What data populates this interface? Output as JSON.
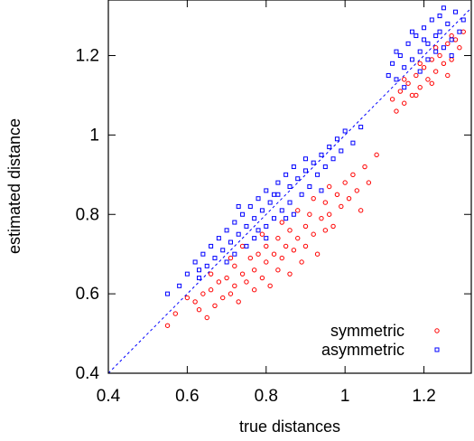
{
  "chart_data": {
    "type": "scatter",
    "title": "",
    "xlabel": "true distances",
    "ylabel": "estimated distance",
    "xlim": [
      0.4,
      1.32
    ],
    "ylim": [
      0.4,
      1.34
    ],
    "xticks": [
      0.4,
      0.6,
      0.8,
      1.0,
      1.2
    ],
    "xtick_labels": [
      "0.4",
      "0.6",
      "0.8",
      "1",
      "1.2"
    ],
    "yticks": [
      0.4,
      0.6,
      0.8,
      1.0,
      1.2
    ],
    "ytick_labels": [
      "0.4",
      "0.6",
      "0.8",
      "1",
      "1.2"
    ],
    "grid": false,
    "legend_position": "bottom-right",
    "reference_line": {
      "style": "dashed",
      "color": "#0000ff",
      "y_equals_x": true
    },
    "series": [
      {
        "name": "symmetric",
        "marker": "circle",
        "color": "#ff0000",
        "points": [
          [
            0.55,
            0.52
          ],
          [
            0.57,
            0.55
          ],
          [
            0.6,
            0.59
          ],
          [
            0.62,
            0.58
          ],
          [
            0.63,
            0.56
          ],
          [
            0.64,
            0.6
          ],
          [
            0.65,
            0.54
          ],
          [
            0.66,
            0.61
          ],
          [
            0.67,
            0.57
          ],
          [
            0.68,
            0.63
          ],
          [
            0.69,
            0.59
          ],
          [
            0.7,
            0.64
          ],
          [
            0.71,
            0.6
          ],
          [
            0.72,
            0.62
          ],
          [
            0.72,
            0.67
          ],
          [
            0.73,
            0.58
          ],
          [
            0.74,
            0.65
          ],
          [
            0.75,
            0.63
          ],
          [
            0.76,
            0.69
          ],
          [
            0.77,
            0.61
          ],
          [
            0.77,
            0.66
          ],
          [
            0.78,
            0.7
          ],
          [
            0.79,
            0.64
          ],
          [
            0.8,
            0.68
          ],
          [
            0.8,
            0.72
          ],
          [
            0.81,
            0.62
          ],
          [
            0.82,
            0.7
          ],
          [
            0.83,
            0.66
          ],
          [
            0.83,
            0.74
          ],
          [
            0.84,
            0.69
          ],
          [
            0.85,
            0.72
          ],
          [
            0.86,
            0.65
          ],
          [
            0.86,
            0.76
          ],
          [
            0.87,
            0.71
          ],
          [
            0.88,
            0.74
          ],
          [
            0.89,
            0.68
          ],
          [
            0.9,
            0.77
          ],
          [
            0.9,
            0.72
          ],
          [
            0.91,
            0.8
          ],
          [
            0.92,
            0.75
          ],
          [
            0.93,
            0.7
          ],
          [
            0.94,
            0.79
          ],
          [
            0.95,
            0.76
          ],
          [
            0.95,
            0.83
          ],
          [
            0.96,
            0.8
          ],
          [
            0.97,
            0.77
          ],
          [
            0.98,
            0.85
          ],
          [
            0.99,
            0.82
          ],
          [
            1.0,
            0.88
          ],
          [
            1.01,
            0.84
          ],
          [
            1.02,
            0.9
          ],
          [
            1.03,
            0.86
          ],
          [
            1.04,
            0.81
          ],
          [
            1.05,
            0.92
          ],
          [
            1.06,
            0.88
          ],
          [
            1.08,
            0.95
          ],
          [
            0.74,
            0.72
          ],
          [
            0.79,
            0.75
          ],
          [
            0.84,
            0.78
          ],
          [
            0.88,
            0.81
          ],
          [
            0.92,
            0.84
          ],
          [
            0.96,
            0.87
          ],
          [
            0.66,
            0.65
          ],
          [
            0.71,
            0.69
          ],
          [
            1.12,
            1.09
          ],
          [
            1.13,
            1.06
          ],
          [
            1.14,
            1.11
          ],
          [
            1.15,
            1.08
          ],
          [
            1.16,
            1.13
          ],
          [
            1.17,
            1.1
          ],
          [
            1.18,
            1.15
          ],
          [
            1.19,
            1.12
          ],
          [
            1.2,
            1.17
          ],
          [
            1.21,
            1.14
          ],
          [
            1.22,
            1.19
          ],
          [
            1.23,
            1.16
          ],
          [
            1.24,
            1.2
          ],
          [
            1.25,
            1.18
          ],
          [
            1.26,
            1.23
          ],
          [
            1.27,
            1.19
          ],
          [
            1.28,
            1.24
          ],
          [
            1.29,
            1.22
          ],
          [
            1.3,
            1.26
          ],
          [
            1.15,
            1.14
          ],
          [
            1.19,
            1.18
          ],
          [
            1.23,
            1.22
          ],
          [
            1.27,
            1.25
          ],
          [
            1.18,
            1.1
          ],
          [
            1.22,
            1.13
          ],
          [
            1.26,
            1.15
          ]
        ]
      },
      {
        "name": "asymmetric",
        "marker": "square",
        "color": "#0000ff",
        "points": [
          [
            0.55,
            0.6
          ],
          [
            0.58,
            0.62
          ],
          [
            0.6,
            0.65
          ],
          [
            0.62,
            0.68
          ],
          [
            0.63,
            0.64
          ],
          [
            0.64,
            0.7
          ],
          [
            0.65,
            0.67
          ],
          [
            0.66,
            0.72
          ],
          [
            0.67,
            0.69
          ],
          [
            0.68,
            0.74
          ],
          [
            0.69,
            0.71
          ],
          [
            0.7,
            0.76
          ],
          [
            0.71,
            0.73
          ],
          [
            0.72,
            0.78
          ],
          [
            0.72,
            0.7
          ],
          [
            0.73,
            0.75
          ],
          [
            0.74,
            0.8
          ],
          [
            0.75,
            0.77
          ],
          [
            0.76,
            0.82
          ],
          [
            0.77,
            0.74
          ],
          [
            0.77,
            0.79
          ],
          [
            0.78,
            0.84
          ],
          [
            0.79,
            0.81
          ],
          [
            0.8,
            0.77
          ],
          [
            0.8,
            0.86
          ],
          [
            0.81,
            0.83
          ],
          [
            0.82,
            0.79
          ],
          [
            0.83,
            0.88
          ],
          [
            0.83,
            0.85
          ],
          [
            0.84,
            0.81
          ],
          [
            0.85,
            0.9
          ],
          [
            0.86,
            0.87
          ],
          [
            0.86,
            0.83
          ],
          [
            0.87,
            0.92
          ],
          [
            0.88,
            0.89
          ],
          [
            0.89,
            0.85
          ],
          [
            0.9,
            0.94
          ],
          [
            0.9,
            0.91
          ],
          [
            0.91,
            0.87
          ],
          [
            0.92,
            0.93
          ],
          [
            0.93,
            0.9
          ],
          [
            0.94,
            0.95
          ],
          [
            0.95,
            0.92
          ],
          [
            0.96,
            0.97
          ],
          [
            0.97,
            0.94
          ],
          [
            0.98,
            0.99
          ],
          [
            0.99,
            0.96
          ],
          [
            1.0,
            1.01
          ],
          [
            1.02,
            0.98
          ],
          [
            1.04,
            1.02
          ],
          [
            0.75,
            0.72
          ],
          [
            0.8,
            0.74
          ],
          [
            0.85,
            0.79
          ],
          [
            0.78,
            0.76
          ],
          [
            0.7,
            0.68
          ],
          [
            0.63,
            0.66
          ],
          [
            0.94,
            0.86
          ],
          [
            0.82,
            0.85
          ],
          [
            0.87,
            0.8
          ],
          [
            0.73,
            0.82
          ],
          [
            1.11,
            1.15
          ],
          [
            1.12,
            1.18
          ],
          [
            1.13,
            1.14
          ],
          [
            1.14,
            1.2
          ],
          [
            1.15,
            1.17
          ],
          [
            1.16,
            1.23
          ],
          [
            1.17,
            1.19
          ],
          [
            1.18,
            1.25
          ],
          [
            1.19,
            1.21
          ],
          [
            1.2,
            1.27
          ],
          [
            1.21,
            1.23
          ],
          [
            1.22,
            1.29
          ],
          [
            1.23,
            1.25
          ],
          [
            1.24,
            1.3
          ],
          [
            1.25,
            1.22
          ],
          [
            1.26,
            1.28
          ],
          [
            1.27,
            1.24
          ],
          [
            1.28,
            1.31
          ],
          [
            1.29,
            1.26
          ],
          [
            1.3,
            1.29
          ],
          [
            1.13,
            1.21
          ],
          [
            1.17,
            1.26
          ],
          [
            1.21,
            1.19
          ],
          [
            1.25,
            1.32
          ],
          [
            1.15,
            1.12
          ],
          [
            1.19,
            1.16
          ],
          [
            1.23,
            1.21
          ],
          [
            1.27,
            1.2
          ],
          [
            1.2,
            1.24
          ],
          [
            1.24,
            1.26
          ]
        ]
      }
    ]
  }
}
